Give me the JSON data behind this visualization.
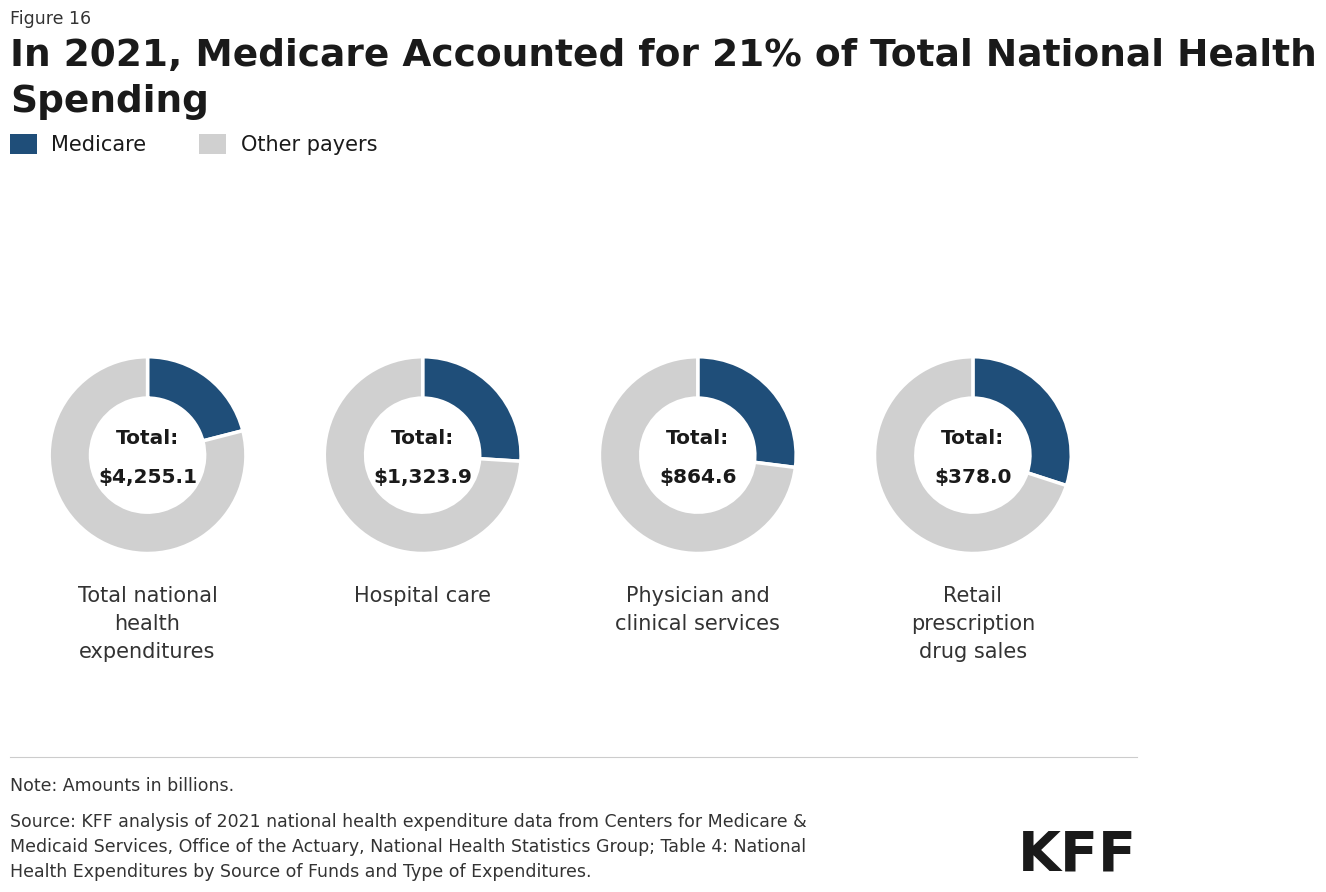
{
  "figure_label": "Figure 16",
  "title_line1": "In 2021, Medicare Accounted for 21% of Total National Health",
  "title_line2": "Spending",
  "legend_labels": [
    "Medicare",
    "Other payers"
  ],
  "medicare_color": "#1f4e79",
  "other_color": "#d0d0d0",
  "background_color": "#ffffff",
  "charts": [
    {
      "label": "Total national\nhealth\nexpenditures",
      "total": "$4,255.1",
      "medicare_pct": 21
    },
    {
      "label": "Hospital care",
      "total": "$1,323.9",
      "medicare_pct": 26
    },
    {
      "label": "Physician and\nclinical services",
      "total": "$864.6",
      "medicare_pct": 27
    },
    {
      "label": "Retail\nprescription\ndrug sales",
      "total": "$378.0",
      "medicare_pct": 30
    }
  ],
  "note": "Note: Amounts in billions.",
  "source": "Source: KFF analysis of 2021 national health expenditure data from Centers for Medicare &\nMedicaid Services, Office of the Actuary, National Health Statistics Group; Table 4: National\nHealth Expenditures by Source of Funds and Type of Expenditures.",
  "kff_logo": "KFF"
}
